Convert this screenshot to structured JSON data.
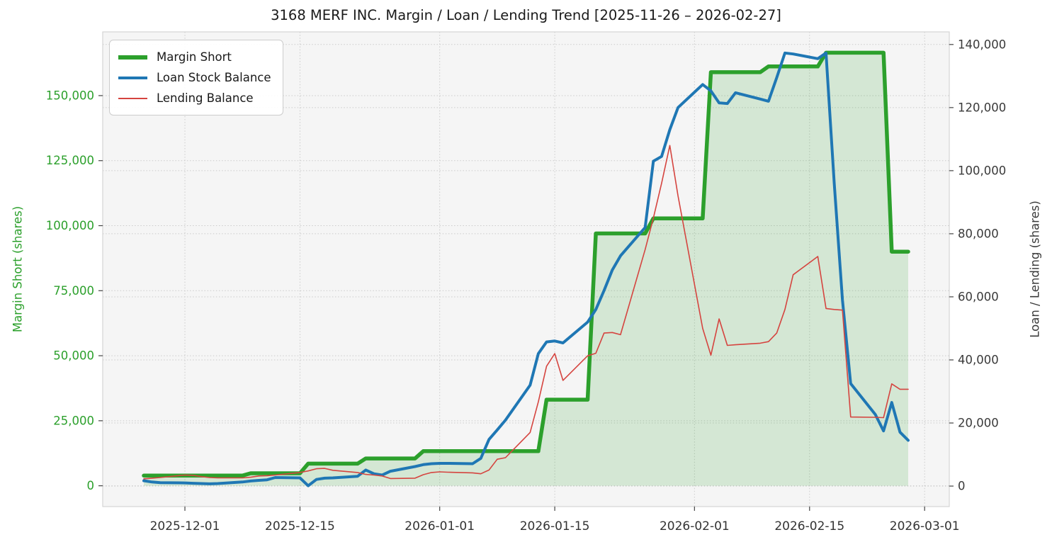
{
  "title": "3168 MERF INC. Margin / Loan / Lending Trend [2025-11-26 – 2026-02-27]",
  "colors": {
    "figure_bg": "#ffffff",
    "plot_bg": "#f5f5f5",
    "grid": "#cbcbcb",
    "spine": "#d4d4d4",
    "tick": "#444444",
    "title_text": "#1a1a1a",
    "x_label_text": "#333333",
    "margin_green": "#2ca02c",
    "loan_blue": "#1f77b4",
    "lending_red": "#d5443f",
    "area_fill": "rgba(44,160,44,0.16)"
  },
  "chart_data": {
    "type": "line",
    "title": "3168 MERF INC. Margin / Loan / Lending Trend [2025-11-26 – 2026-02-27]",
    "grid": true,
    "legend_position": "upper left",
    "x": [
      "2025-11-26",
      "2025-11-27",
      "2025-11-28",
      "2025-12-01",
      "2025-12-02",
      "2025-12-03",
      "2025-12-04",
      "2025-12-05",
      "2025-12-08",
      "2025-12-09",
      "2025-12-10",
      "2025-12-11",
      "2025-12-12",
      "2025-12-15",
      "2025-12-16",
      "2025-12-17",
      "2025-12-18",
      "2025-12-19",
      "2025-12-22",
      "2025-12-23",
      "2025-12-24",
      "2025-12-25",
      "2025-12-26",
      "2025-12-29",
      "2025-12-30",
      "2025-12-31",
      "2026-01-01",
      "2026-01-02",
      "2026-01-05",
      "2026-01-06",
      "2026-01-07",
      "2026-01-08",
      "2026-01-09",
      "2026-01-12",
      "2026-01-13",
      "2026-01-14",
      "2026-01-15",
      "2026-01-16",
      "2026-01-19",
      "2026-01-20",
      "2026-01-21",
      "2026-01-22",
      "2026-01-23",
      "2026-01-26",
      "2026-01-27",
      "2026-01-28",
      "2026-01-29",
      "2026-01-30",
      "2026-02-02",
      "2026-02-03",
      "2026-02-04",
      "2026-02-05",
      "2026-02-06",
      "2026-02-09",
      "2026-02-10",
      "2026-02-11",
      "2026-02-12",
      "2026-02-13",
      "2026-02-16",
      "2026-02-17",
      "2026-02-18",
      "2026-02-19",
      "2026-02-20",
      "2026-02-23",
      "2026-02-24",
      "2026-02-25",
      "2026-02-26",
      "2026-02-27"
    ],
    "series": [
      {
        "name": "Margin Short",
        "axis": "left",
        "color": "#2ca02c",
        "line_width": 5.5,
        "fill_to_zero": true,
        "values": [
          3900,
          3900,
          3900,
          3900,
          3900,
          3900,
          3900,
          3900,
          3900,
          4800,
          4800,
          4800,
          4800,
          4800,
          8500,
          8500,
          8500,
          8500,
          8500,
          10500,
          10500,
          10500,
          10500,
          10500,
          13300,
          13300,
          13300,
          13300,
          13300,
          13300,
          13300,
          13300,
          13300,
          13300,
          13300,
          33100,
          33100,
          33100,
          33100,
          97000,
          97000,
          97000,
          97000,
          97000,
          102800,
          102800,
          102800,
          102800,
          102800,
          159000,
          159000,
          159000,
          159000,
          159000,
          161200,
          161200,
          161200,
          161200,
          161200,
          166500,
          166500,
          166500,
          166500,
          166500,
          166500,
          90000,
          90000,
          90000
        ]
      },
      {
        "name": "Loan Stock Balance",
        "axis": "right",
        "color": "#1f77b4",
        "line_width": 4,
        "fill_to_zero": false,
        "values": [
          1700,
          1300,
          1100,
          1000,
          900,
          800,
          700,
          800,
          1300,
          1600,
          1800,
          2000,
          2700,
          2600,
          100,
          2100,
          2500,
          2600,
          3100,
          5100,
          3900,
          3500,
          4700,
          6200,
          6800,
          7100,
          7200,
          7200,
          7100,
          8800,
          14800,
          17800,
          20900,
          32000,
          42000,
          45700,
          46000,
          45400,
          52000,
          56000,
          62000,
          68500,
          73000,
          82000,
          103000,
          104500,
          113000,
          120000,
          127300,
          125300,
          121500,
          121300,
          124700,
          122700,
          122000,
          129500,
          137300,
          137000,
          135500,
          137300,
          96000,
          59000,
          32500,
          22700,
          17500,
          26500,
          17100,
          14500
        ]
      },
      {
        "name": "Lending Balance",
        "axis": "right",
        "color": "#d5443f",
        "line_width": 1.6,
        "fill_to_zero": false,
        "values": [
          2300,
          2500,
          2700,
          3500,
          3400,
          3000,
          2700,
          2600,
          2600,
          2800,
          3200,
          3300,
          3500,
          4300,
          4800,
          5500,
          5600,
          5000,
          4300,
          3700,
          3500,
          3200,
          2400,
          2500,
          3600,
          4300,
          4500,
          4400,
          4200,
          3900,
          5100,
          8500,
          9000,
          17000,
          26700,
          38000,
          42000,
          33500,
          41300,
          42100,
          48500,
          48700,
          48000,
          75000,
          85000,
          96000,
          108000,
          92000,
          50000,
          41500,
          53000,
          44600,
          44800,
          45300,
          45800,
          48500,
          56000,
          67000,
          72800,
          56300,
          56000,
          55800,
          21900,
          21800,
          21700,
          32400,
          30700,
          30700
        ]
      }
    ],
    "left_axis": {
      "label": "Margin Short (shares)",
      "color": "#2ca02c",
      "ticks": [
        0,
        25000,
        50000,
        75000,
        100000,
        125000,
        150000
      ],
      "tick_labels": [
        "0",
        "25,000",
        "50,000",
        "75,000",
        "100,000",
        "125,000",
        "150,000"
      ],
      "lim": [
        -8000,
        174500
      ]
    },
    "right_axis": {
      "label": "Loan / Lending (shares)",
      "color": "#3a3a3a",
      "ticks": [
        0,
        20000,
        40000,
        60000,
        80000,
        100000,
        120000,
        140000
      ],
      "tick_labels": [
        "0",
        "20,000",
        "40,000",
        "60,000",
        "80,000",
        "100,000",
        "120,000",
        "140,000"
      ],
      "lim": [
        -6500,
        144000
      ]
    },
    "x_axis": {
      "ticks": [
        "2025-12-01",
        "2025-12-15",
        "2026-01-01",
        "2026-01-15",
        "2026-02-01",
        "2026-02-15",
        "2026-03-01"
      ],
      "tick_labels": [
        "2025-12-01",
        "2025-12-15",
        "2026-01-01",
        "2026-01-15",
        "2026-02-01",
        "2026-02-15",
        "2026-03-01"
      ],
      "lim": [
        "2025-11-21",
        "2026-03-04"
      ]
    }
  }
}
